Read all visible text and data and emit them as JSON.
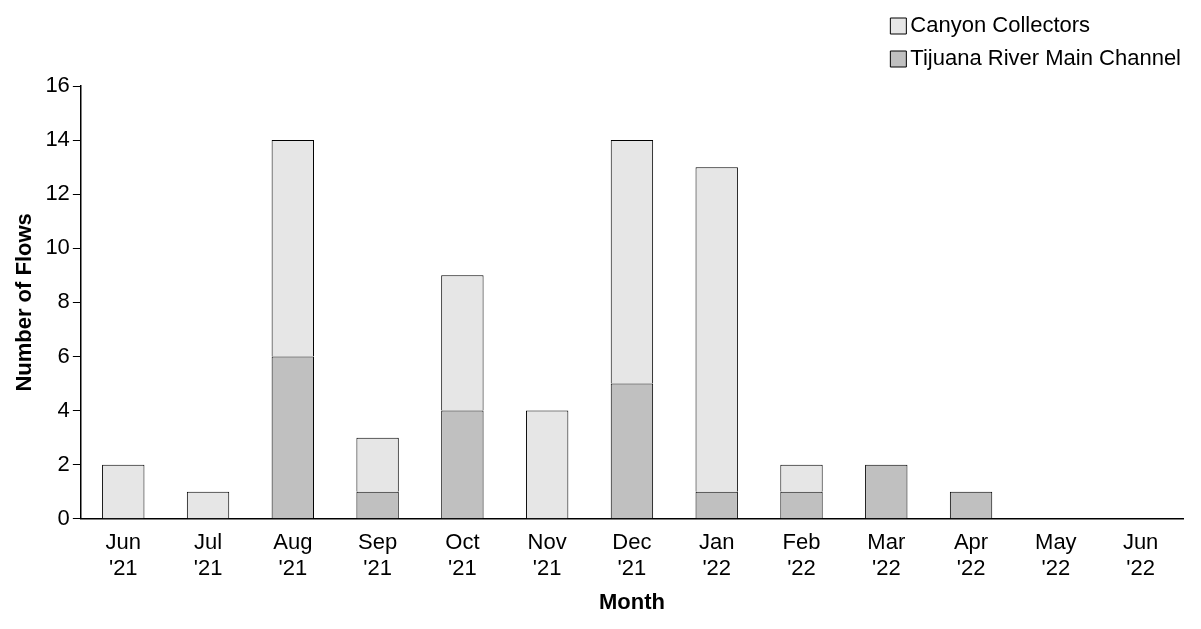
{
  "chart_data": {
    "type": "bar",
    "stacked": true,
    "xlabel": "Month",
    "ylabel": "Number of Flows",
    "categories": [
      "Jun '21",
      "Jul '21",
      "Aug '21",
      "Sep '21",
      "Oct '21",
      "Nov '21",
      "Dec '21",
      "Jan '22",
      "Feb '22",
      "Mar '22",
      "Apr '22",
      "May '22",
      "Jun '22"
    ],
    "series": [
      {
        "name": "Tijuana River Main Channel",
        "color": "#c0c0c0",
        "values": [
          0,
          0,
          6,
          1,
          4,
          0,
          5,
          1,
          1,
          2,
          1,
          0,
          0
        ]
      },
      {
        "name": "Canyon Collectors",
        "color": "#e6e6e6",
        "values": [
          2,
          1,
          8,
          2,
          5,
          4,
          9,
          12,
          1,
          0,
          0,
          0,
          0
        ]
      }
    ],
    "ylim": [
      0,
      16
    ],
    "yticks": [
      0,
      2,
      4,
      6,
      8,
      10,
      12,
      14,
      16
    ],
    "grid": false,
    "legend": "top right"
  }
}
